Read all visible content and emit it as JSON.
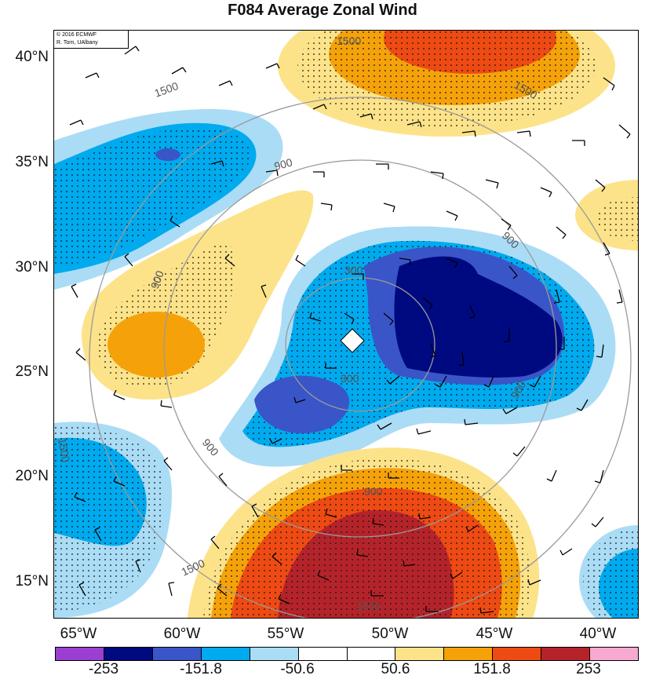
{
  "title": "F084 Average Zonal Wind",
  "credit": {
    "line1": "© 2016 ECMWF",
    "line2": "R. Torn, UAlbany"
  },
  "lat_labels": [
    "40°N",
    "35°N",
    "30°N",
    "25°N",
    "20°N",
    "15°N"
  ],
  "lon_labels": [
    "65°W",
    "60°W",
    "55°W",
    "50°W",
    "45°W",
    "40°W"
  ],
  "contour_labels": [
    "1500",
    "1500",
    "1500",
    "1500",
    "1500",
    "1500",
    "900",
    "900",
    "900",
    "900",
    "900",
    "900",
    "300",
    "300"
  ],
  "legend": {
    "colors": [
      "#9b3fd1",
      "#000a80",
      "#3a55c8",
      "#00aaee",
      "#aadcf6",
      "#ffffff",
      "#ffffff",
      "#fce38a",
      "#f5a20a",
      "#ee4a14",
      "#b5232a",
      "#f7a9d2"
    ],
    "labels": [
      "-253",
      "-151.8",
      "-50.6",
      "50.6",
      "151.8",
      "253"
    ]
  }
}
